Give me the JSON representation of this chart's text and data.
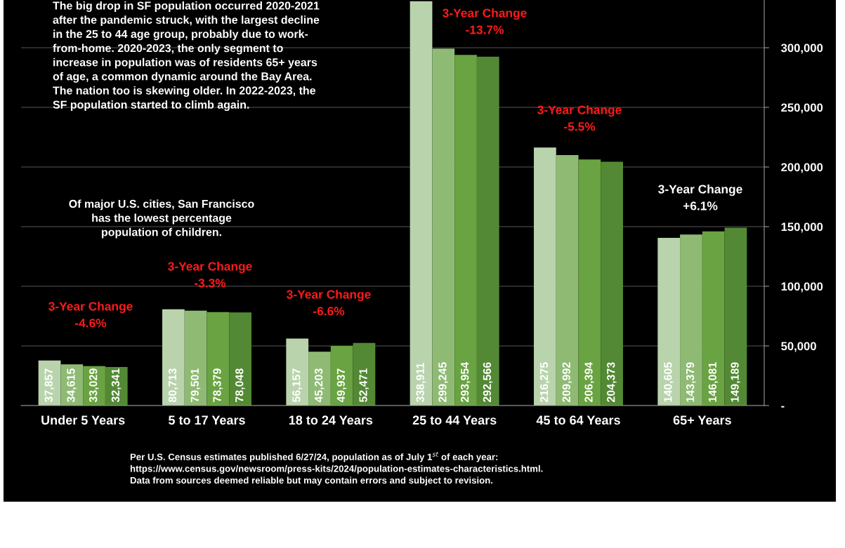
{
  "chart_data": {
    "type": "bar",
    "categories": [
      "Under 5 Years",
      "5 to 17 Years",
      "18 to 24 Years",
      "25 to 44 Years",
      "45 to 64 Years",
      "65+ Years"
    ],
    "series": [
      {
        "color": "#b9d4ad",
        "values": [
          37857,
          80713,
          56157,
          338911,
          216275,
          140605
        ],
        "value_labels": [
          "37,857",
          "80,713",
          "56,157",
          "338,911",
          "216,275",
          "140,605"
        ]
      },
      {
        "color": "#8fba74",
        "values": [
          34615,
          79501,
          45203,
          299245,
          209992,
          143379
        ],
        "value_labels": [
          "34,615",
          "79,501",
          "45,203",
          "299,245",
          "209,992",
          "143,379"
        ]
      },
      {
        "color": "#69a342",
        "values": [
          33029,
          78379,
          49937,
          293954,
          206394,
          146081
        ],
        "value_labels": [
          "33,029",
          "78,379",
          "49,937",
          "293,954",
          "206,394",
          "146,081"
        ]
      },
      {
        "color": "#538934",
        "values": [
          32341,
          78048,
          52471,
          292566,
          204373,
          149189
        ],
        "value_labels": [
          "32,341",
          "78,048",
          "52,471",
          "292,566",
          "204,373",
          "149,189"
        ]
      }
    ],
    "ylim": [
      0,
      340000
    ],
    "yticks": [
      {
        "value": 0,
        "label": "-"
      },
      {
        "value": 50000,
        "label": "50,000"
      },
      {
        "value": 100000,
        "label": "100,000"
      },
      {
        "value": 150000,
        "label": "150,000"
      },
      {
        "value": 200000,
        "label": "200,000"
      },
      {
        "value": 250000,
        "label": "250,000"
      },
      {
        "value": 300000,
        "label": "300,000"
      }
    ],
    "grid": "y",
    "legend": false,
    "annotations": [
      "3-Year Change\n-4.6%",
      "3-Year Change\n-3.3%",
      "3-Year Change\n-6.6%",
      "3-Year Change\n-13.7%",
      "3-Year Change\n-5.5%",
      "3-Year Change\n+6.1%",
      "The big drop in SF population occurred 2020-2021\nafter the pandemic struck, with the largest decline\nin the 25 to 44 age group, probably due to work-\nfrom-home. 2020-2023, the only segment to\nincrease in population was of residents 65+ years\nof age, a common dynamic around the Bay Area.\nThe nation too is skewing older. In 2022-2023, the\nSF population started to climb again.",
      "Of major U.S. cities, San Francisco\nhas the lowest percentage\npopulation of children.",
      "Per U.S. Census estimates published 6/27/24, population as of July 1$^{st}$ of each year:\nhttps://www.census.gov/newsroom/press-kits/2024/population-estimates-characteristics.html.\nData from sources deemed reliable but may contain errors and subject to revision."
    ]
  }
}
